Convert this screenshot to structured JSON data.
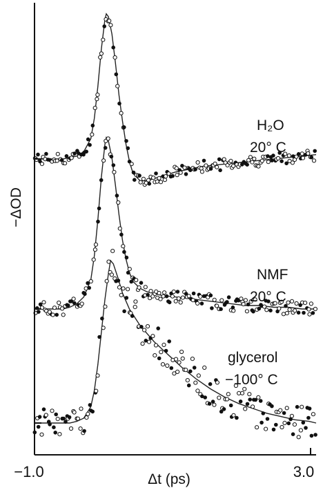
{
  "chart_data": {
    "type": "scatter",
    "xlabel": "Δt (ps)",
    "ylabel": "−ΔOD",
    "xlim": [
      -1.0,
      3.0
    ],
    "x_ticks": [
      "−1.0",
      "3.0"
    ],
    "grid": false,
    "series": [
      {
        "name": "H₂O",
        "temperature": "20° C",
        "peak_x": 0.02,
        "points": [
          [
            -0.98,
            0.0
          ],
          [
            -0.9,
            0.0
          ],
          [
            -0.8,
            0.0
          ],
          [
            -0.7,
            0.0
          ],
          [
            -0.6,
            0.0
          ],
          [
            -0.5,
            0.01
          ],
          [
            -0.4,
            0.02
          ],
          [
            -0.3,
            0.05
          ],
          [
            -0.2,
            0.14
          ],
          [
            -0.15,
            0.28
          ],
          [
            -0.1,
            0.5
          ],
          [
            -0.05,
            0.76
          ],
          [
            0.0,
            0.96
          ],
          [
            0.02,
            1.0
          ],
          [
            0.05,
            0.98
          ],
          [
            0.1,
            0.86
          ],
          [
            0.15,
            0.66
          ],
          [
            0.2,
            0.44
          ],
          [
            0.25,
            0.26
          ],
          [
            0.3,
            0.1
          ],
          [
            0.35,
            -0.02
          ],
          [
            0.4,
            -0.1
          ],
          [
            0.5,
            -0.15
          ],
          [
            0.6,
            -0.15
          ],
          [
            0.8,
            -0.12
          ],
          [
            1.0,
            -0.09
          ],
          [
            1.2,
            -0.07
          ],
          [
            1.4,
            -0.05
          ],
          [
            1.6,
            -0.04
          ],
          [
            1.8,
            -0.03
          ],
          [
            2.0,
            -0.02
          ],
          [
            2.2,
            -0.01
          ],
          [
            2.4,
            0.0
          ],
          [
            2.6,
            0.01
          ],
          [
            2.8,
            0.02
          ],
          [
            3.0,
            0.03
          ]
        ]
      },
      {
        "name": "NMF",
        "temperature": "20° C",
        "peak_x": 0.02,
        "points": [
          [
            -0.98,
            0.0
          ],
          [
            -0.9,
            0.0
          ],
          [
            -0.8,
            0.0
          ],
          [
            -0.7,
            0.0
          ],
          [
            -0.6,
            0.0
          ],
          [
            -0.5,
            0.01
          ],
          [
            -0.4,
            0.03
          ],
          [
            -0.3,
            0.07
          ],
          [
            -0.2,
            0.17
          ],
          [
            -0.15,
            0.31
          ],
          [
            -0.1,
            0.52
          ],
          [
            -0.05,
            0.77
          ],
          [
            0.0,
            0.96
          ],
          [
            0.02,
            1.0
          ],
          [
            0.05,
            0.98
          ],
          [
            0.1,
            0.88
          ],
          [
            0.15,
            0.72
          ],
          [
            0.2,
            0.55
          ],
          [
            0.25,
            0.4
          ],
          [
            0.3,
            0.29
          ],
          [
            0.35,
            0.21
          ],
          [
            0.4,
            0.16
          ],
          [
            0.5,
            0.12
          ],
          [
            0.6,
            0.1
          ],
          [
            0.8,
            0.08
          ],
          [
            1.0,
            0.07
          ],
          [
            1.2,
            0.06
          ],
          [
            1.4,
            0.05
          ],
          [
            1.6,
            0.04
          ],
          [
            1.8,
            0.03
          ],
          [
            2.0,
            0.02
          ],
          [
            2.2,
            0.02
          ],
          [
            2.4,
            0.01
          ],
          [
            2.6,
            0.01
          ],
          [
            2.8,
            0.0
          ],
          [
            3.0,
            0.0
          ]
        ]
      },
      {
        "name": "glycerol",
        "temperature": "−100° C",
        "peak_x": 0.08,
        "points": [
          [
            -0.98,
            0.0
          ],
          [
            -0.9,
            0.0
          ],
          [
            -0.8,
            0.0
          ],
          [
            -0.7,
            0.0
          ],
          [
            -0.6,
            0.0
          ],
          [
            -0.5,
            0.0
          ],
          [
            -0.4,
            0.01
          ],
          [
            -0.3,
            0.03
          ],
          [
            -0.2,
            0.1
          ],
          [
            -0.15,
            0.2
          ],
          [
            -0.1,
            0.36
          ],
          [
            -0.05,
            0.56
          ],
          [
            0.0,
            0.76
          ],
          [
            0.05,
            0.92
          ],
          [
            0.08,
            1.0
          ],
          [
            0.12,
            0.98
          ],
          [
            0.18,
            0.9
          ],
          [
            0.25,
            0.8
          ],
          [
            0.35,
            0.7
          ],
          [
            0.5,
            0.6
          ],
          [
            0.7,
            0.5
          ],
          [
            0.9,
            0.42
          ],
          [
            1.1,
            0.34
          ],
          [
            1.3,
            0.27
          ],
          [
            1.5,
            0.21
          ],
          [
            1.7,
            0.16
          ],
          [
            1.9,
            0.12
          ],
          [
            2.1,
            0.09
          ],
          [
            2.3,
            0.06
          ],
          [
            2.5,
            0.04
          ],
          [
            2.7,
            0.02
          ],
          [
            2.9,
            0.01
          ],
          [
            3.0,
            0.0
          ]
        ]
      }
    ]
  }
}
